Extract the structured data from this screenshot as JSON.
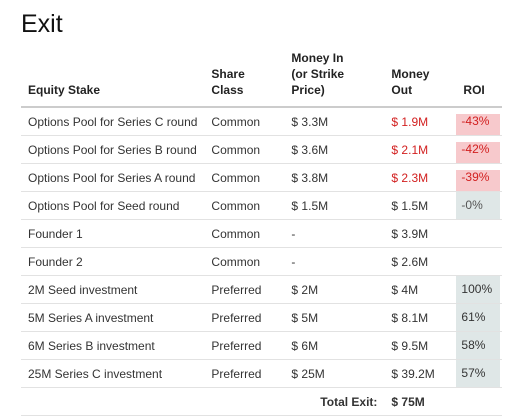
{
  "title": "Exit",
  "headers": {
    "stake": "Equity Stake",
    "share_class": "Share Class",
    "money_in_line1": "Money In",
    "money_in_line2": "(or Strike Price)",
    "money_out": "Money Out",
    "roi": "ROI"
  },
  "rows": [
    {
      "stake": "Options Pool for Series C round",
      "share_class": "Common",
      "money_in": "$ 3.3M",
      "money_out": "$ 1.9M",
      "roi": "-43%"
    },
    {
      "stake": "Options Pool for Series B round",
      "share_class": "Common",
      "money_in": "$ 3.6M",
      "money_out": "$ 2.1M",
      "roi": "-42%"
    },
    {
      "stake": "Options Pool for Series A round",
      "share_class": "Common",
      "money_in": "$ 3.8M",
      "money_out": "$ 2.3M",
      "roi": "-39%"
    },
    {
      "stake": "Options Pool for Seed round",
      "share_class": "Common",
      "money_in": "$ 1.5M",
      "money_out": "$ 1.5M",
      "roi": "-0%"
    },
    {
      "stake": "Founder 1",
      "share_class": "Common",
      "money_in": "-",
      "money_out": "$ 3.9M",
      "roi": ""
    },
    {
      "stake": "Founder 2",
      "share_class": "Common",
      "money_in": "-",
      "money_out": "$ 2.6M",
      "roi": ""
    },
    {
      "stake": "2M Seed investment",
      "share_class": "Preferred",
      "money_in": "$ 2M",
      "money_out": "$ 4M",
      "roi": "100%"
    },
    {
      "stake": "5M Series A investment",
      "share_class": "Preferred",
      "money_in": "$ 5M",
      "money_out": "$ 8.1M",
      "roi": "61%"
    },
    {
      "stake": "6M Series B investment",
      "share_class": "Preferred",
      "money_in": "$ 6M",
      "money_out": "$ 9.5M",
      "roi": "58%"
    },
    {
      "stake": "25M Series C investment",
      "share_class": "Preferred",
      "money_in": "$ 25M",
      "money_out": "$ 39.2M",
      "roi": "57%"
    }
  ],
  "total": {
    "label": "Total Exit:",
    "value": "$ 75M"
  },
  "colors": {
    "negative_text": "#d21f1f",
    "negative_roi_bg": "#f7c9cc",
    "neutral_roi_bg": "#dfe7e7"
  }
}
